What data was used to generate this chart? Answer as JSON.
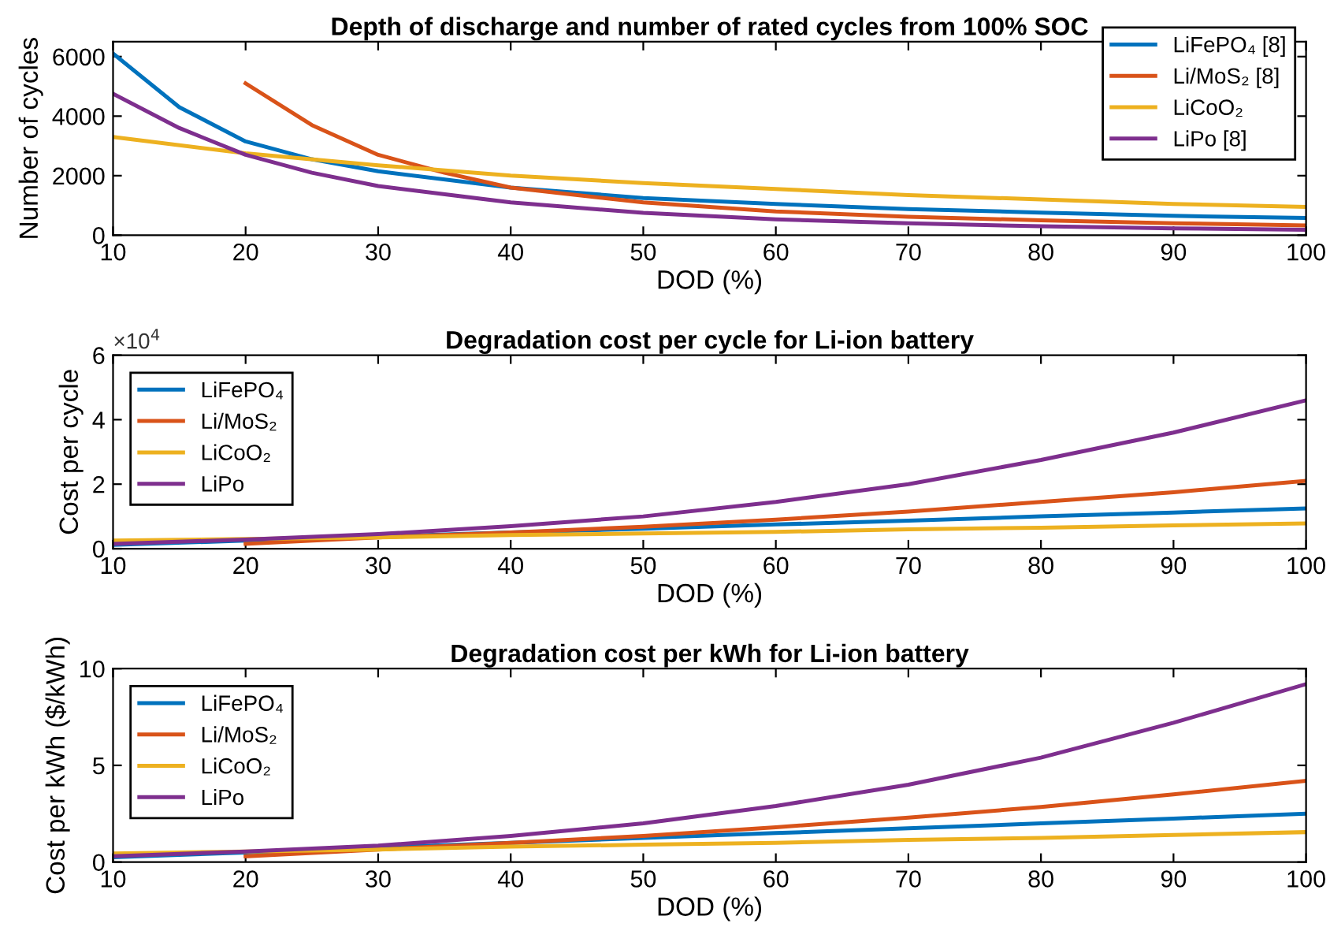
{
  "chart_data": [
    {
      "type": "line",
      "title": "Depth of discharge and number of rated cycles from 100% SOC",
      "xlabel": "DOD (%)",
      "ylabel": "Number of cycles",
      "xlim": [
        10,
        100
      ],
      "xticks": [
        10,
        20,
        30,
        40,
        50,
        60,
        70,
        80,
        90,
        100
      ],
      "ylim": [
        0,
        6500
      ],
      "yticks": [
        0,
        2000,
        4000,
        6000
      ],
      "legend": "top right",
      "grid": false,
      "series": [
        {
          "name": "LiFePO₄ [8]",
          "color": "#0072bd",
          "x": [
            10,
            15,
            20,
            25,
            30,
            40,
            50,
            60,
            70,
            80,
            90,
            100
          ],
          "values": [
            6100,
            4300,
            3150,
            2550,
            2150,
            1600,
            1250,
            1050,
            880,
            760,
            650,
            580
          ]
        },
        {
          "name": "Li/MoS₂ [8]",
          "color": "#d95319",
          "x": [
            20,
            25,
            30,
            35,
            40,
            50,
            60,
            70,
            80,
            90,
            100
          ],
          "values": [
            5100,
            3700,
            2700,
            2100,
            1600,
            1100,
            800,
            620,
            500,
            400,
            330
          ]
        },
        {
          "name": "LiCoO₂",
          "color": "#edb120",
          "x": [
            10,
            20,
            30,
            40,
            50,
            60,
            70,
            80,
            90,
            100
          ],
          "values": [
            3300,
            2750,
            2350,
            2000,
            1750,
            1550,
            1350,
            1200,
            1050,
            950
          ]
        },
        {
          "name": "LiPo [8]",
          "color": "#7e2f8e",
          "x": [
            10,
            15,
            20,
            25,
            30,
            40,
            50,
            60,
            70,
            80,
            90,
            100
          ],
          "values": [
            4750,
            3600,
            2700,
            2100,
            1650,
            1100,
            750,
            530,
            400,
            300,
            230,
            180
          ]
        }
      ]
    },
    {
      "type": "line",
      "title": "Degradation cost per cycle for Li-ion battery",
      "xlabel": "DOD (%)",
      "ylabel": "Cost per cycle",
      "annotations": [
        "×10$^{4}$"
      ],
      "xlim": [
        10,
        100
      ],
      "xticks": [
        10,
        20,
        30,
        40,
        50,
        60,
        70,
        80,
        90,
        100
      ],
      "ylim": [
        0,
        6
      ],
      "yticks": [
        0,
        2,
        4,
        6
      ],
      "legend": "top left",
      "grid": false,
      "series": [
        {
          "name": "LiFePO₄",
          "color": "#0072bd",
          "x": [
            10,
            20,
            30,
            40,
            50,
            60,
            70,
            80,
            90,
            100
          ],
          "values": [
            0.12,
            0.25,
            0.38,
            0.5,
            0.62,
            0.75,
            0.87,
            1.0,
            1.12,
            1.25
          ]
        },
        {
          "name": "Li/MoS₂",
          "color": "#d95319",
          "x": [
            20,
            30,
            40,
            50,
            60,
            70,
            80,
            90,
            100
          ],
          "values": [
            0.15,
            0.35,
            0.5,
            0.68,
            0.9,
            1.15,
            1.45,
            1.75,
            2.1
          ]
        },
        {
          "name": "LiCoO₂",
          "color": "#edb120",
          "x": [
            10,
            20,
            30,
            40,
            50,
            60,
            70,
            80,
            90,
            100
          ],
          "values": [
            0.25,
            0.3,
            0.35,
            0.42,
            0.47,
            0.52,
            0.6,
            0.65,
            0.72,
            0.78
          ]
        },
        {
          "name": "LiPo",
          "color": "#7e2f8e",
          "x": [
            10,
            20,
            30,
            40,
            50,
            60,
            70,
            80,
            90,
            100
          ],
          "values": [
            0.15,
            0.28,
            0.45,
            0.7,
            1.0,
            1.45,
            2.0,
            2.75,
            3.6,
            4.6
          ]
        }
      ]
    },
    {
      "type": "line",
      "title": "Degradation cost per kWh for Li-ion battery",
      "xlabel": "DOD (%)",
      "ylabel": "Cost per kWh ($/kWh)",
      "xlim": [
        10,
        100
      ],
      "xticks": [
        10,
        20,
        30,
        40,
        50,
        60,
        70,
        80,
        90,
        100
      ],
      "ylim": [
        0,
        10
      ],
      "yticks": [
        0,
        5,
        10
      ],
      "legend": "top left",
      "grid": false,
      "series": [
        {
          "name": "LiFePO₄",
          "color": "#0072bd",
          "x": [
            10,
            20,
            30,
            40,
            50,
            60,
            70,
            80,
            90,
            100
          ],
          "values": [
            0.25,
            0.5,
            0.75,
            1.0,
            1.25,
            1.5,
            1.75,
            2.0,
            2.25,
            2.5
          ]
        },
        {
          "name": "Li/MoS₂",
          "color": "#d95319",
          "x": [
            20,
            30,
            40,
            50,
            60,
            70,
            80,
            90,
            100
          ],
          "values": [
            0.3,
            0.65,
            1.0,
            1.35,
            1.8,
            2.3,
            2.85,
            3.5,
            4.2
          ]
        },
        {
          "name": "LiCoO₂",
          "color": "#edb120",
          "x": [
            10,
            20,
            30,
            40,
            50,
            60,
            70,
            80,
            90,
            100
          ],
          "values": [
            0.45,
            0.55,
            0.65,
            0.8,
            0.9,
            1.0,
            1.15,
            1.25,
            1.4,
            1.55
          ]
        },
        {
          "name": "LiPo",
          "color": "#7e2f8e",
          "x": [
            10,
            20,
            30,
            40,
            50,
            60,
            70,
            80,
            90,
            100
          ],
          "values": [
            0.3,
            0.55,
            0.85,
            1.35,
            2.0,
            2.9,
            4.0,
            5.4,
            7.2,
            9.2
          ]
        }
      ]
    }
  ]
}
